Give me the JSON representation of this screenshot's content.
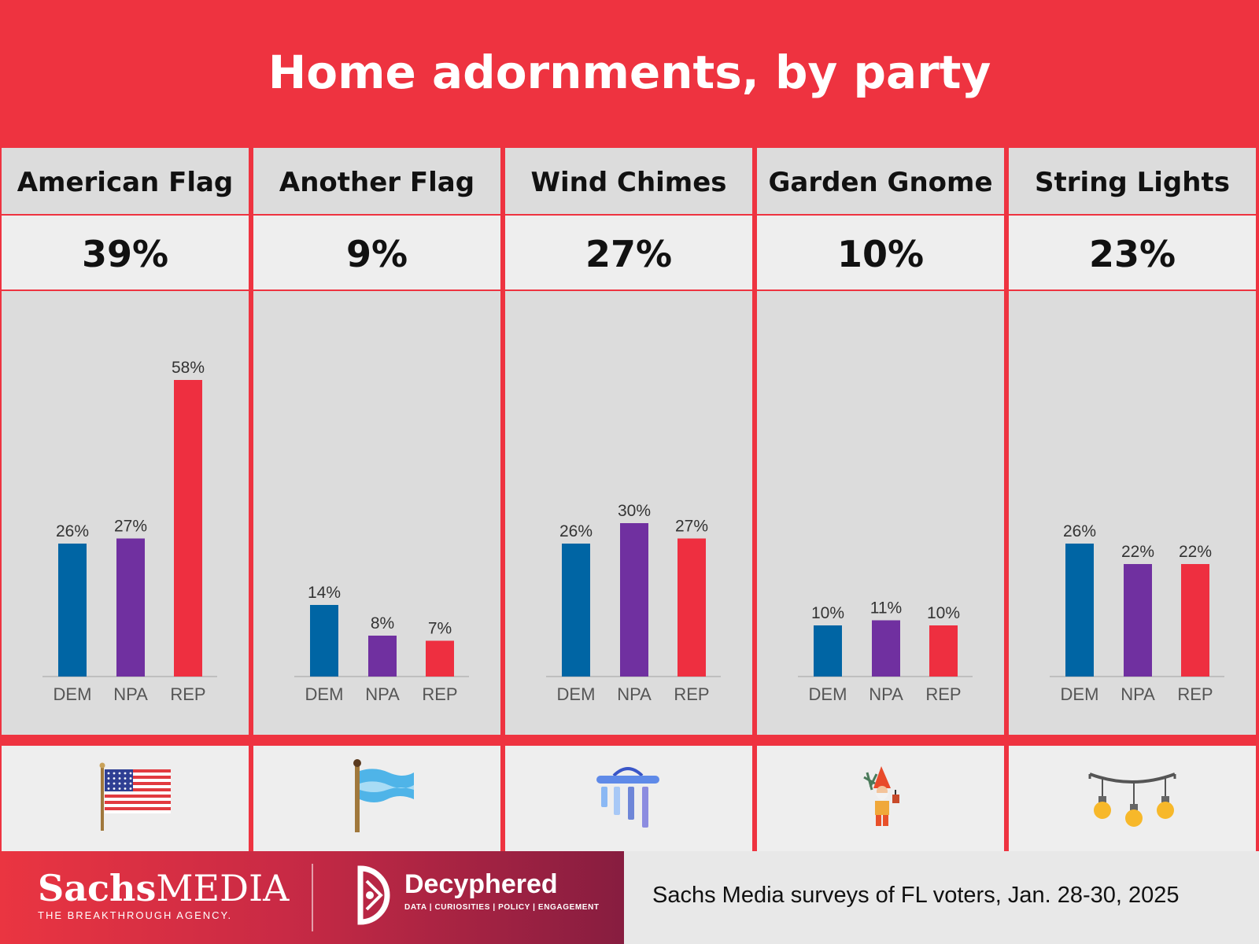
{
  "title": "Home adornments, by party",
  "colors": {
    "background": "#ee3340",
    "dem": "#0065a4",
    "npa": "#7030a0",
    "rep": "#ee2f40",
    "cell_dark": "#dcdcdc",
    "cell_light": "#eeeeee"
  },
  "chart_data": [
    {
      "type": "bar",
      "title": "American Flag",
      "total": "39%",
      "categories": [
        "DEM",
        "NPA",
        "REP"
      ],
      "values": [
        26,
        27,
        58
      ],
      "value_labels": [
        "26%",
        "27%",
        "58%"
      ],
      "ylim": [
        0,
        60
      ],
      "grid": false,
      "icon": "american-flag-icon"
    },
    {
      "type": "bar",
      "title": "Another Flag",
      "total": "9%",
      "categories": [
        "DEM",
        "NPA",
        "REP"
      ],
      "values": [
        14,
        8,
        7
      ],
      "value_labels": [
        "14%",
        "8%",
        "7%"
      ],
      "ylim": [
        0,
        60
      ],
      "grid": false,
      "icon": "blue-flag-icon"
    },
    {
      "type": "bar",
      "title": "Wind Chimes",
      "total": "27%",
      "categories": [
        "DEM",
        "NPA",
        "REP"
      ],
      "values": [
        26,
        30,
        27
      ],
      "value_labels": [
        "26%",
        "30%",
        "27%"
      ],
      "ylim": [
        0,
        60
      ],
      "grid": false,
      "icon": "wind-chimes-icon"
    },
    {
      "type": "bar",
      "title": "Garden Gnome",
      "total": "10%",
      "categories": [
        "DEM",
        "NPA",
        "REP"
      ],
      "values": [
        10,
        11,
        10
      ],
      "value_labels": [
        "10%",
        "11%",
        "10%"
      ],
      "ylim": [
        0,
        60
      ],
      "grid": false,
      "icon": "garden-gnome-icon"
    },
    {
      "type": "bar",
      "title": "String Lights",
      "total": "23%",
      "categories": [
        "DEM",
        "NPA",
        "REP"
      ],
      "values": [
        26,
        22,
        22
      ],
      "value_labels": [
        "26%",
        "22%",
        "22%"
      ],
      "ylim": [
        0,
        60
      ],
      "grid": false,
      "icon": "string-lights-icon"
    }
  ],
  "footer": {
    "sachs_name_bold": "Sachs",
    "sachs_name_light": "MEDIA",
    "sachs_tagline": "THE BREAKTHROUGH AGENCY.",
    "decyphered_name": "Decyphered",
    "decyphered_tagline": "DATA | CURIOSITIES | POLICY | ENGAGEMENT",
    "source": "Sachs Media surveys of FL voters, Jan. 28-30, 2025"
  }
}
